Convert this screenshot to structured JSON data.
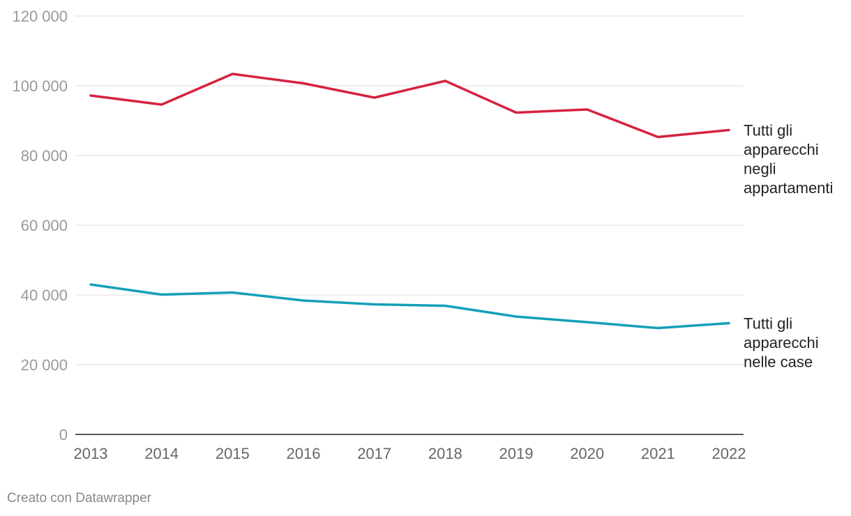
{
  "chart_data": {
    "type": "line",
    "x": [
      "2013",
      "2014",
      "2015",
      "2016",
      "2017",
      "2018",
      "2019",
      "2020",
      "2021",
      "2022"
    ],
    "ylim": [
      0,
      120000
    ],
    "y_ticks": [
      0,
      20000,
      40000,
      60000,
      80000,
      100000,
      120000
    ],
    "y_tick_labels": [
      "0",
      "20 000",
      "40 000",
      "60 000",
      "80 000",
      "100 000",
      "120 000"
    ],
    "grid": true,
    "legend": "inline labels at line ends",
    "series": [
      {
        "name": "Tutti gli apparecchi negli appartamenti",
        "label_lines": [
          "Tutti gli",
          "apparecchi",
          "negli",
          "appartamenti"
        ],
        "color": "#d6223f",
        "values": [
          97200,
          94600,
          103400,
          100700,
          96600,
          101400,
          92300,
          93200,
          85300,
          87300
        ]
      },
      {
        "name": "Tutti gli apparecchi nelle case",
        "label_lines": [
          "Tutti gli",
          "apparecchi",
          "nelle case"
        ],
        "color": "#14a0b8",
        "values": [
          43000,
          40100,
          40700,
          38400,
          37300,
          36900,
          33800,
          32200,
          30500,
          31900
        ]
      }
    ]
  },
  "credit": "Creato con Datawrapper"
}
